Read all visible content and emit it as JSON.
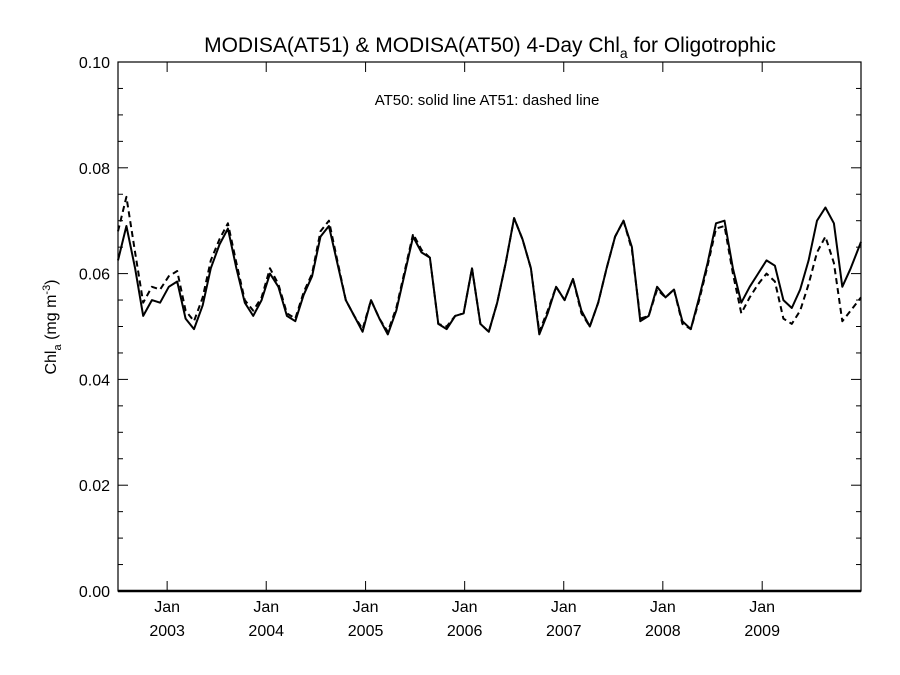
{
  "chart_data": {
    "type": "line",
    "title": {
      "main": "MODISA(AT51) & MODISA(AT50) 4-Day Chl",
      "sub": "a",
      "tail": " for Oligotrophic"
    },
    "ylabel": {
      "main": "Chl",
      "sub": "a",
      "units_open": " (mg m",
      "sup": "-3",
      "units_close": ")"
    },
    "annotation": "AT50: solid line   AT51: dashed line",
    "xlim": [
      "2002-07-04",
      "2009-12-31"
    ],
    "ylim": [
      0.0,
      0.1
    ],
    "yticks": [
      0.0,
      0.02,
      0.04,
      0.06,
      0.08,
      0.1
    ],
    "ytick_labels": [
      "0.00",
      "0.02",
      "0.04",
      "0.06",
      "0.08",
      "0.10"
    ],
    "xticks": [
      {
        "date": "2003-01-01",
        "month": "Jan",
        "year": "2003"
      },
      {
        "date": "2004-01-01",
        "month": "Jan",
        "year": "2004"
      },
      {
        "date": "2005-01-01",
        "month": "Jan",
        "year": "2005"
      },
      {
        "date": "2006-01-01",
        "month": "Jan",
        "year": "2006"
      },
      {
        "date": "2007-01-01",
        "month": "Jan",
        "year": "2007"
      },
      {
        "date": "2008-01-01",
        "month": "Jan",
        "year": "2008"
      },
      {
        "date": "2009-01-01",
        "month": "Jan",
        "year": "2009"
      }
    ],
    "grid": false,
    "series": [
      {
        "name": "AT50",
        "style": "solid",
        "points": [
          [
            "2002-07-04",
            0.0625
          ],
          [
            "2002-08-04",
            0.069
          ],
          [
            "2002-09-05",
            0.061
          ],
          [
            "2002-10-05",
            0.052
          ],
          [
            "2002-11-06",
            0.055
          ],
          [
            "2002-12-06",
            0.0545
          ],
          [
            "2003-01-07",
            0.0575
          ],
          [
            "2003-02-07",
            0.0585
          ],
          [
            "2003-03-10",
            0.0515
          ],
          [
            "2003-04-10",
            0.0495
          ],
          [
            "2003-05-12",
            0.054
          ],
          [
            "2003-06-11",
            0.061
          ],
          [
            "2003-07-13",
            0.0655
          ],
          [
            "2003-08-13",
            0.0685
          ],
          [
            "2003-09-13",
            0.061
          ],
          [
            "2003-10-14",
            0.0545
          ],
          [
            "2003-11-14",
            0.052
          ],
          [
            "2003-12-15",
            0.055
          ],
          [
            "2004-01-15",
            0.06
          ],
          [
            "2004-02-15",
            0.0575
          ],
          [
            "2004-03-17",
            0.052
          ],
          [
            "2004-04-17",
            0.051
          ],
          [
            "2004-05-18",
            0.056
          ],
          [
            "2004-06-18",
            0.0595
          ],
          [
            "2004-07-19",
            0.067
          ],
          [
            "2004-08-19",
            0.069
          ],
          [
            "2004-09-19",
            0.062
          ],
          [
            "2004-10-20",
            0.055
          ],
          [
            "2004-11-20",
            0.052
          ],
          [
            "2004-12-21",
            0.049
          ],
          [
            "2005-01-21",
            0.055
          ],
          [
            "2005-02-21",
            0.0515
          ],
          [
            "2005-03-24",
            0.0485
          ],
          [
            "2005-04-24",
            0.053
          ],
          [
            "2005-05-25",
            0.06
          ],
          [
            "2005-06-25",
            0.067
          ],
          [
            "2005-07-26",
            0.064
          ],
          [
            "2005-08-26",
            0.063
          ],
          [
            "2005-09-26",
            0.0505
          ],
          [
            "2005-10-27",
            0.0495
          ],
          [
            "2005-11-27",
            0.052
          ],
          [
            "2005-12-28",
            0.0525
          ],
          [
            "2006-01-28",
            0.061
          ],
          [
            "2006-02-28",
            0.0505
          ],
          [
            "2006-03-31",
            0.049
          ],
          [
            "2006-05-01",
            0.0545
          ],
          [
            "2006-06-01",
            0.062
          ],
          [
            "2006-07-02",
            0.0705
          ],
          [
            "2006-08-02",
            0.0665
          ],
          [
            "2006-09-02",
            0.061
          ],
          [
            "2006-10-03",
            0.0485
          ],
          [
            "2006-11-03",
            0.0525
          ],
          [
            "2006-12-04",
            0.0575
          ],
          [
            "2007-01-04",
            0.055
          ],
          [
            "2007-02-04",
            0.059
          ],
          [
            "2007-03-07",
            0.053
          ],
          [
            "2007-04-07",
            0.05
          ],
          [
            "2007-05-08",
            0.0545
          ],
          [
            "2007-06-08",
            0.061
          ],
          [
            "2007-07-09",
            0.067
          ],
          [
            "2007-08-09",
            0.07
          ],
          [
            "2007-09-09",
            0.065
          ],
          [
            "2007-10-10",
            0.051
          ],
          [
            "2007-11-10",
            0.052
          ],
          [
            "2007-12-11",
            0.0575
          ],
          [
            "2008-01-11",
            0.0555
          ],
          [
            "2008-02-11",
            0.057
          ],
          [
            "2008-03-13",
            0.051
          ],
          [
            "2008-04-13",
            0.0495
          ],
          [
            "2008-05-14",
            0.0555
          ],
          [
            "2008-06-14",
            0.062
          ],
          [
            "2008-07-15",
            0.0695
          ],
          [
            "2008-08-15",
            0.07
          ],
          [
            "2008-09-15",
            0.061
          ],
          [
            "2008-10-16",
            0.0545
          ],
          [
            "2008-11-16",
            0.0575
          ],
          [
            "2008-12-17",
            0.06
          ],
          [
            "2009-01-17",
            0.0625
          ],
          [
            "2009-02-17",
            0.0615
          ],
          [
            "2009-03-20",
            0.055
          ],
          [
            "2009-04-20",
            0.0535
          ],
          [
            "2009-05-21",
            0.057
          ],
          [
            "2009-06-21",
            0.0625
          ],
          [
            "2009-07-22",
            0.07
          ],
          [
            "2009-08-22",
            0.0725
          ],
          [
            "2009-09-22",
            0.0695
          ],
          [
            "2009-10-23",
            0.0575
          ],
          [
            "2009-11-23",
            0.061
          ],
          [
            "2009-12-31",
            0.066
          ]
        ]
      },
      {
        "name": "AT51",
        "style": "dashed",
        "points": [
          [
            "2002-07-04",
            0.068
          ],
          [
            "2002-08-04",
            0.0745
          ],
          [
            "2002-09-05",
            0.064
          ],
          [
            "2002-10-05",
            0.0545
          ],
          [
            "2002-11-06",
            0.0575
          ],
          [
            "2002-12-06",
            0.057
          ],
          [
            "2003-01-07",
            0.0595
          ],
          [
            "2003-02-07",
            0.0605
          ],
          [
            "2003-03-10",
            0.053
          ],
          [
            "2003-04-10",
            0.051
          ],
          [
            "2003-05-12",
            0.0555
          ],
          [
            "2003-06-11",
            0.0625
          ],
          [
            "2003-07-13",
            0.0665
          ],
          [
            "2003-08-13",
            0.0695
          ],
          [
            "2003-09-13",
            0.062
          ],
          [
            "2003-10-14",
            0.055
          ],
          [
            "2003-11-14",
            0.053
          ],
          [
            "2003-12-15",
            0.0555
          ],
          [
            "2004-01-15",
            0.061
          ],
          [
            "2004-02-15",
            0.058
          ],
          [
            "2004-03-17",
            0.0525
          ],
          [
            "2004-04-17",
            0.0515
          ],
          [
            "2004-05-18",
            0.0565
          ],
          [
            "2004-06-18",
            0.06
          ],
          [
            "2004-07-19",
            0.068
          ],
          [
            "2004-08-19",
            0.07
          ],
          [
            "2004-09-19",
            0.0625
          ],
          [
            "2004-10-20",
            0.055
          ],
          [
            "2004-11-20",
            0.052
          ],
          [
            "2004-12-21",
            0.0495
          ],
          [
            "2005-01-21",
            0.055
          ],
          [
            "2005-02-21",
            0.0515
          ],
          [
            "2005-03-24",
            0.049
          ],
          [
            "2005-04-24",
            0.0535
          ],
          [
            "2005-05-25",
            0.0605
          ],
          [
            "2005-06-25",
            0.0675
          ],
          [
            "2005-07-26",
            0.0645
          ],
          [
            "2005-08-26",
            0.063
          ],
          [
            "2005-09-26",
            0.0505
          ],
          [
            "2005-10-27",
            0.05
          ],
          [
            "2005-11-27",
            0.052
          ],
          [
            "2005-12-28",
            0.0525
          ],
          [
            "2006-01-28",
            0.061
          ],
          [
            "2006-02-28",
            0.0505
          ],
          [
            "2006-03-31",
            0.049
          ],
          [
            "2006-05-01",
            0.0545
          ],
          [
            "2006-06-01",
            0.062
          ],
          [
            "2006-07-02",
            0.0705
          ],
          [
            "2006-08-02",
            0.0665
          ],
          [
            "2006-09-02",
            0.061
          ],
          [
            "2006-10-03",
            0.049
          ],
          [
            "2006-11-03",
            0.053
          ],
          [
            "2006-12-04",
            0.0575
          ],
          [
            "2007-01-04",
            0.055
          ],
          [
            "2007-02-04",
            0.059
          ],
          [
            "2007-03-07",
            0.0525
          ],
          [
            "2007-04-07",
            0.05
          ],
          [
            "2007-05-08",
            0.0545
          ],
          [
            "2007-06-08",
            0.061
          ],
          [
            "2007-07-09",
            0.067
          ],
          [
            "2007-08-09",
            0.07
          ],
          [
            "2007-09-09",
            0.0645
          ],
          [
            "2007-10-10",
            0.0515
          ],
          [
            "2007-11-10",
            0.052
          ],
          [
            "2007-12-11",
            0.057
          ],
          [
            "2008-01-11",
            0.0555
          ],
          [
            "2008-02-11",
            0.057
          ],
          [
            "2008-03-13",
            0.0505
          ],
          [
            "2008-04-13",
            0.0495
          ],
          [
            "2008-05-14",
            0.055
          ],
          [
            "2008-06-14",
            0.0615
          ],
          [
            "2008-07-15",
            0.0685
          ],
          [
            "2008-08-15",
            0.069
          ],
          [
            "2008-09-15",
            0.06
          ],
          [
            "2008-10-16",
            0.0525
          ],
          [
            "2008-11-16",
            0.0555
          ],
          [
            "2008-12-17",
            0.058
          ],
          [
            "2009-01-17",
            0.06
          ],
          [
            "2009-02-17",
            0.0585
          ],
          [
            "2009-03-20",
            0.0515
          ],
          [
            "2009-04-20",
            0.0505
          ],
          [
            "2009-05-21",
            0.053
          ],
          [
            "2009-06-21",
            0.058
          ],
          [
            "2009-07-22",
            0.064
          ],
          [
            "2009-08-22",
            0.067
          ],
          [
            "2009-09-22",
            0.062
          ],
          [
            "2009-10-23",
            0.051
          ],
          [
            "2009-11-23",
            0.053
          ],
          [
            "2009-12-31",
            0.0555
          ]
        ]
      }
    ]
  }
}
